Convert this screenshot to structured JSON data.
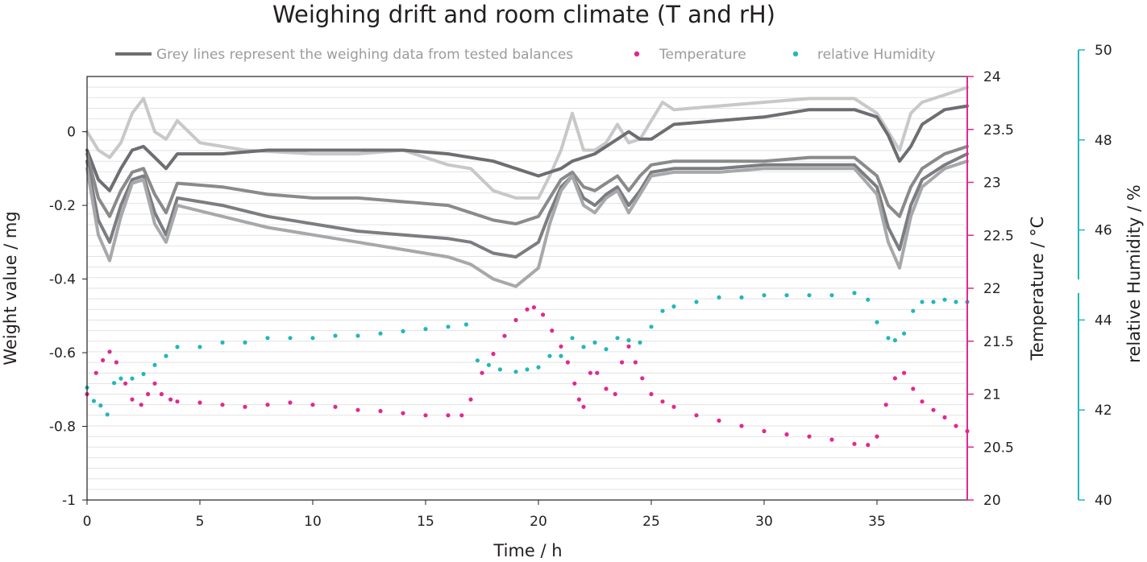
{
  "chart_data": {
    "type": "line",
    "title": "Weighing drift and room climate (T and rH)",
    "xlabel": "Time / h",
    "ylabel_left": "Weight value / mg",
    "ylabel_right_1": "Temperature / °C",
    "ylabel_right_2": "relative Humidity / %",
    "xlim": [
      0,
      39
    ],
    "ylim_left": [
      -1,
      0.15
    ],
    "ylim_temperature": [
      20,
      24
    ],
    "ylim_humidity": [
      40,
      50
    ],
    "x_ticks": [
      "0",
      "5",
      "10",
      "15",
      "20",
      "25",
      "30",
      "35"
    ],
    "y_left_ticks": [
      "0",
      "-0.2",
      "-0.4",
      "-0.6",
      "-0.8",
      "-1"
    ],
    "y_temperature_ticks": [
      "24",
      "23.5",
      "23",
      "22.5",
      "22",
      "21.5",
      "21",
      "20.5",
      "20"
    ],
    "y_humidity_ticks": [
      "50",
      "48",
      "46",
      "44",
      "42",
      "40"
    ],
    "grid": true,
    "legend_position": "top",
    "legend": [
      {
        "label": "Grey lines represent the weighing data from tested balances",
        "color": "#6d6e71",
        "kind": "line"
      },
      {
        "label": "Temperature",
        "color": "#e2288f",
        "kind": "dot"
      },
      {
        "label": "relative Humidity",
        "color": "#23b7b9",
        "kind": "dot"
      }
    ],
    "series": [
      {
        "axis": "left",
        "color": "#c8c8c8",
        "x": [
          0,
          0.5,
          1,
          1.5,
          2,
          2.5,
          3,
          3.5,
          4,
          5,
          7,
          10,
          12,
          14,
          16,
          17,
          18,
          19,
          20,
          20.5,
          21,
          21.5,
          22,
          22.5,
          23,
          23.5,
          24,
          24.5,
          25,
          25.5,
          26,
          28,
          30,
          32,
          34,
          35,
          35.5,
          36,
          36.5,
          37,
          38,
          39
        ],
        "y": [
          0.0,
          -0.05,
          -0.07,
          -0.03,
          0.05,
          0.09,
          0.0,
          -0.02,
          0.03,
          -0.03,
          -0.05,
          -0.06,
          -0.06,
          -0.05,
          -0.09,
          -0.1,
          -0.16,
          -0.18,
          -0.18,
          -0.12,
          -0.05,
          0.05,
          -0.05,
          -0.05,
          -0.03,
          0.02,
          -0.03,
          -0.02,
          0.03,
          0.08,
          0.06,
          0.07,
          0.08,
          0.09,
          0.09,
          0.05,
          0.0,
          -0.05,
          0.05,
          0.08,
          0.1,
          0.12
        ]
      },
      {
        "axis": "left",
        "color": "#6d6e71",
        "x": [
          0,
          0.5,
          1,
          1.5,
          2,
          2.5,
          3,
          3.5,
          4,
          6,
          8,
          10,
          12,
          14,
          16,
          18,
          19,
          20,
          20.5,
          21,
          21.5,
          22,
          22.5,
          23,
          23.5,
          24,
          24.5,
          25,
          26,
          28,
          30,
          32,
          34,
          35,
          35.5,
          36,
          36.5,
          37,
          38,
          39
        ],
        "y": [
          -0.05,
          -0.13,
          -0.16,
          -0.1,
          -0.05,
          -0.04,
          -0.07,
          -0.1,
          -0.06,
          -0.06,
          -0.05,
          -0.05,
          -0.05,
          -0.05,
          -0.06,
          -0.08,
          -0.1,
          -0.12,
          -0.11,
          -0.1,
          -0.08,
          -0.07,
          -0.06,
          -0.04,
          -0.02,
          0.0,
          -0.02,
          -0.02,
          0.02,
          0.03,
          0.04,
          0.06,
          0.06,
          0.04,
          -0.01,
          -0.08,
          -0.04,
          0.02,
          0.06,
          0.07
        ]
      },
      {
        "axis": "left",
        "color": "#8a8a8a",
        "x": [
          0,
          0.5,
          1,
          1.5,
          2,
          2.5,
          3,
          3.5,
          4,
          6,
          8,
          10,
          12,
          14,
          16,
          17,
          18,
          19,
          20,
          20.5,
          21,
          21.5,
          22,
          22.5,
          23,
          23.5,
          24,
          24.5,
          25,
          26,
          28,
          30,
          32,
          34,
          35,
          35.5,
          36,
          36.5,
          37,
          38,
          39
        ],
        "y": [
          -0.06,
          -0.18,
          -0.23,
          -0.16,
          -0.11,
          -0.1,
          -0.17,
          -0.22,
          -0.14,
          -0.15,
          -0.17,
          -0.18,
          -0.18,
          -0.19,
          -0.2,
          -0.22,
          -0.24,
          -0.25,
          -0.23,
          -0.18,
          -0.13,
          -0.11,
          -0.15,
          -0.16,
          -0.14,
          -0.12,
          -0.16,
          -0.12,
          -0.09,
          -0.08,
          -0.08,
          -0.08,
          -0.07,
          -0.07,
          -0.12,
          -0.2,
          -0.23,
          -0.15,
          -0.1,
          -0.06,
          -0.04
        ]
      },
      {
        "axis": "left",
        "color": "#7c7d80",
        "x": [
          0,
          0.5,
          1,
          1.5,
          2,
          2.5,
          3,
          3.5,
          4,
          6,
          8,
          10,
          12,
          14,
          16,
          17,
          18,
          19,
          20,
          20.5,
          21,
          21.5,
          22,
          22.5,
          23,
          23.5,
          24,
          24.5,
          25,
          26,
          28,
          30,
          32,
          34,
          35,
          35.5,
          36,
          36.5,
          37,
          38,
          39
        ],
        "y": [
          -0.08,
          -0.24,
          -0.3,
          -0.2,
          -0.13,
          -0.12,
          -0.22,
          -0.28,
          -0.18,
          -0.2,
          -0.23,
          -0.25,
          -0.27,
          -0.28,
          -0.29,
          -0.3,
          -0.33,
          -0.34,
          -0.3,
          -0.22,
          -0.15,
          -0.12,
          -0.18,
          -0.2,
          -0.17,
          -0.15,
          -0.2,
          -0.16,
          -0.11,
          -0.1,
          -0.1,
          -0.09,
          -0.09,
          -0.09,
          -0.15,
          -0.26,
          -0.32,
          -0.2,
          -0.13,
          -0.09,
          -0.06
        ]
      },
      {
        "axis": "left",
        "color": "#a7a8aa",
        "x": [
          0,
          0.5,
          1,
          1.5,
          2,
          2.5,
          3,
          3.5,
          4,
          6,
          8,
          10,
          12,
          14,
          16,
          17,
          18,
          19,
          20,
          20.5,
          21,
          21.5,
          22,
          22.5,
          23,
          23.5,
          24,
          24.5,
          25,
          26,
          28,
          30,
          32,
          34,
          35,
          35.5,
          36,
          36.5,
          37,
          38,
          39
        ],
        "y": [
          -0.1,
          -0.28,
          -0.35,
          -0.23,
          -0.14,
          -0.13,
          -0.25,
          -0.3,
          -0.2,
          -0.23,
          -0.26,
          -0.28,
          -0.3,
          -0.32,
          -0.34,
          -0.36,
          -0.4,
          -0.42,
          -0.37,
          -0.25,
          -0.16,
          -0.12,
          -0.2,
          -0.22,
          -0.18,
          -0.16,
          -0.22,
          -0.17,
          -0.12,
          -0.11,
          -0.11,
          -0.1,
          -0.1,
          -0.1,
          -0.17,
          -0.3,
          -0.37,
          -0.23,
          -0.15,
          -0.1,
          -0.08
        ]
      },
      {
        "axis": "temperature",
        "color": "#e2288f",
        "x": [
          0,
          0.4,
          0.7,
          1.0,
          1.3,
          1.7,
          2.0,
          2.4,
          2.7,
          3.0,
          3.3,
          3.7,
          4.0,
          5,
          6,
          7,
          8,
          9,
          10,
          11,
          12,
          13,
          14,
          15,
          16,
          16.6,
          17.0,
          17.5,
          18.0,
          18.5,
          19.0,
          19.5,
          19.8,
          20.2,
          20.6,
          21.0,
          21.3,
          21.6,
          21.8,
          22.0,
          22.3,
          22.6,
          23.0,
          23.4,
          23.7,
          24.0,
          24.3,
          24.6,
          25.0,
          25.5,
          26.0,
          27,
          28,
          29,
          30,
          31,
          32,
          33,
          34,
          34.6,
          35.0,
          35.4,
          35.8,
          36.2,
          36.6,
          37.0,
          37.5,
          38.0,
          38.5,
          39.0
        ],
        "y": [
          21.0,
          21.2,
          21.32,
          21.4,
          21.3,
          21.1,
          20.95,
          20.9,
          21.0,
          21.1,
          21.0,
          20.95,
          20.93,
          20.92,
          20.9,
          20.88,
          20.9,
          20.92,
          20.9,
          20.88,
          20.85,
          20.84,
          20.82,
          20.8,
          20.8,
          20.8,
          20.95,
          21.2,
          21.38,
          21.55,
          21.7,
          21.8,
          21.82,
          21.75,
          21.6,
          21.45,
          21.3,
          21.1,
          20.95,
          20.88,
          21.2,
          21.2,
          21.05,
          21.0,
          21.3,
          21.45,
          21.3,
          21.15,
          21.0,
          20.93,
          20.88,
          20.8,
          20.75,
          20.7,
          20.65,
          20.62,
          20.6,
          20.57,
          20.53,
          20.52,
          20.6,
          20.9,
          21.15,
          21.2,
          21.05,
          20.93,
          20.85,
          20.78,
          20.7,
          20.65
        ]
      },
      {
        "axis": "humidity",
        "color": "#23b7b9",
        "x": [
          0,
          0.3,
          0.6,
          0.9,
          1.2,
          1.5,
          2.0,
          2.5,
          3.0,
          3.5,
          4.0,
          5,
          6,
          7,
          8,
          9,
          10,
          11,
          12,
          13,
          14,
          15,
          16,
          16.8,
          17.3,
          17.8,
          18.3,
          19,
          19.5,
          20,
          20.5,
          21,
          21.5,
          22,
          22.5,
          23,
          23.5,
          24,
          24.5,
          25,
          25.5,
          26,
          27,
          28,
          29,
          30,
          31,
          32,
          33,
          34,
          34.6,
          35,
          35.5,
          35.8,
          36.2,
          36.6,
          37,
          37.5,
          38,
          38.5,
          39
        ],
        "y": [
          42.5,
          42.2,
          42.1,
          41.9,
          42.6,
          42.7,
          42.7,
          42.8,
          43.0,
          43.2,
          43.4,
          43.4,
          43.5,
          43.5,
          43.6,
          43.6,
          43.6,
          43.65,
          43.65,
          43.7,
          43.75,
          43.8,
          43.85,
          43.9,
          43.1,
          43.0,
          42.9,
          42.85,
          42.9,
          42.95,
          43.2,
          43.2,
          43.6,
          43.4,
          43.5,
          43.35,
          43.6,
          43.55,
          43.5,
          43.85,
          44.2,
          44.3,
          44.4,
          44.5,
          44.5,
          44.55,
          44.55,
          44.55,
          44.55,
          44.6,
          44.45,
          43.95,
          43.6,
          43.55,
          43.7,
          44.2,
          44.4,
          44.4,
          44.45,
          44.4,
          44.4
        ]
      }
    ]
  }
}
